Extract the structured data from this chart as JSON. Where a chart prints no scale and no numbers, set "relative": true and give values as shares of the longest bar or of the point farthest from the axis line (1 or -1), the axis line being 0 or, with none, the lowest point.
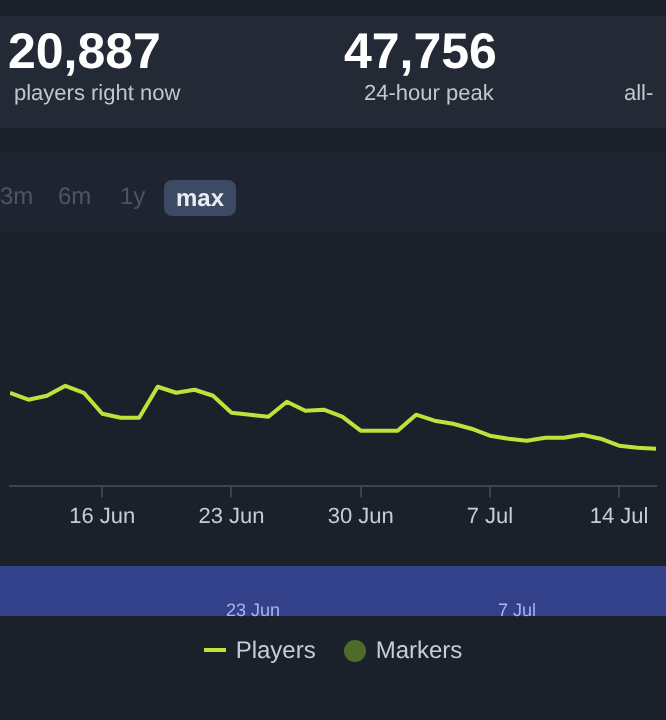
{
  "chart_data": {
    "type": "line",
    "relative": true,
    "legend": "bottom",
    "marker": "none",
    "x": [
      "--06-11",
      "--06-12",
      "--06-13",
      "--06-14",
      "--06-15",
      "--06-16",
      "--06-17",
      "--06-18",
      "--06-19",
      "--06-20",
      "--06-21",
      "--06-22",
      "--06-23",
      "--06-24",
      "--06-25",
      "--06-26",
      "--06-27",
      "--06-28",
      "--06-29",
      "--06-30",
      "--07-01",
      "--07-02",
      "--07-03",
      "--07-04",
      "--07-05",
      "--07-06",
      "--07-07",
      "--07-08",
      "--07-09",
      "--07-10",
      "--07-11",
      "--07-12",
      "--07-13",
      "--07-14",
      "--07-15",
      "--07-16"
    ],
    "xlim": [
      "--06-11",
      "--07-16"
    ],
    "xticks": [
      {
        "value": "--06-16",
        "label": "16 Jun"
      },
      {
        "value": "--06-23",
        "label": "23 Jun"
      },
      {
        "value": "--06-30",
        "label": "30 Jun"
      },
      {
        "value": "--07-07",
        "label": "7 Jul"
      },
      {
        "value": "--07-14",
        "label": "14 Jul"
      }
    ],
    "series": [
      {
        "name": "Players",
        "color": "#bfe23a",
        "values": [
          0.93,
          0.86,
          0.9,
          1.0,
          0.93,
          0.72,
          0.68,
          0.68,
          0.99,
          0.93,
          0.96,
          0.9,
          0.73,
          0.71,
          0.69,
          0.84,
          0.75,
          0.76,
          0.69,
          0.55,
          0.55,
          0.55,
          0.71,
          0.65,
          0.62,
          0.57,
          0.5,
          0.47,
          0.45,
          0.48,
          0.48,
          0.51,
          0.47,
          0.4,
          0.38,
          0.37
        ]
      },
      {
        "name": "Markers",
        "type": "scatter",
        "color": "#4e6b2c",
        "values": [
          null,
          null,
          null,
          null,
          null,
          null,
          null,
          null,
          null,
          null,
          null,
          null,
          null,
          null,
          null,
          null,
          null,
          null,
          null,
          null,
          null,
          null,
          null,
          null,
          null,
          null,
          null,
          null,
          null,
          null,
          null,
          null,
          null,
          null,
          null,
          null
        ]
      }
    ],
    "annotations": [
      "20,887",
      "players right now",
      "47,756",
      "24-hour peak",
      "all-",
      "3m",
      "6m",
      "1y",
      "max",
      "23 Jun",
      "7 Jul"
    ]
  }
}
